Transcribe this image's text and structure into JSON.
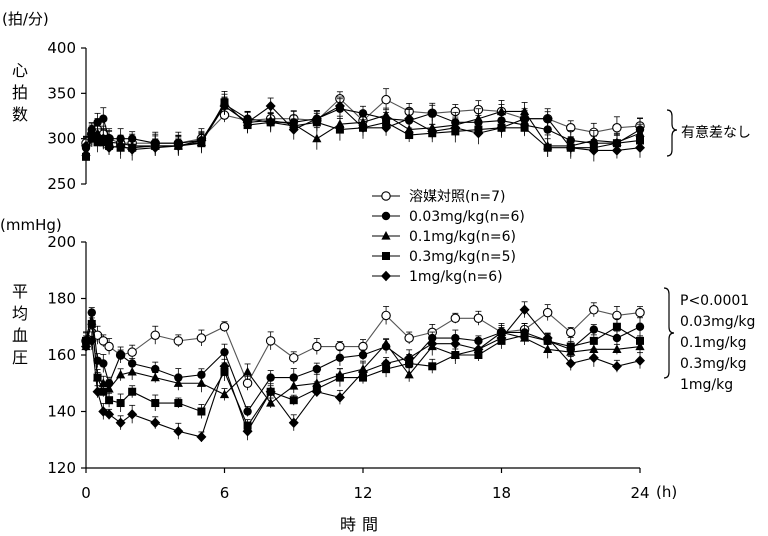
{
  "chart_data": [
    {
      "type": "line",
      "ylabel_unit": "(拍/分)",
      "ylabel": "心拍数",
      "ylim": [
        250,
        400
      ],
      "yticks": [
        250,
        300,
        350,
        400
      ],
      "xlim": [
        0,
        24
      ],
      "x": [
        0,
        0.25,
        0.5,
        0.75,
        1,
        1.5,
        2,
        3,
        4,
        5,
        6,
        7,
        8,
        9,
        10,
        11,
        12,
        13,
        14,
        15,
        16,
        17,
        18,
        19,
        20,
        21,
        22,
        23,
        24
      ],
      "annotation": "有意差なし",
      "series": [
        {
          "name": "溶媒対照(n=7)",
          "marker": "circle-open",
          "values": [
            295,
            305,
            310,
            305,
            300,
            295,
            295,
            295,
            295,
            300,
            326,
            320,
            322,
            322,
            320,
            344,
            320,
            343,
            330,
            328,
            330,
            332,
            330,
            322,
            322,
            312,
            307,
            312,
            314
          ]
        },
        {
          "name": "0.03mg/kg(n=6)",
          "marker": "circle-filled",
          "values": [
            290,
            310,
            318,
            322,
            300,
            300,
            300,
            295,
            295,
            298,
            338,
            322,
            318,
            318,
            322,
            333,
            328,
            322,
            320,
            328,
            318,
            318,
            320,
            315,
            310,
            298,
            295,
            295,
            310
          ]
        },
        {
          "name": "0.1mg/kg(n=6)",
          "marker": "triangle-filled",
          "values": [
            285,
            302,
            306,
            300,
            296,
            295,
            292,
            292,
            292,
            296,
            336,
            318,
            320,
            316,
            300,
            316,
            318,
            326,
            310,
            312,
            315,
            322,
            330,
            330,
            292,
            292,
            298,
            296,
            306
          ]
        },
        {
          "name": "0.3mg/kg(n=5)",
          "marker": "square-filled",
          "values": [
            280,
            300,
            296,
            296,
            292,
            290,
            290,
            292,
            292,
            295,
            340,
            315,
            318,
            314,
            318,
            310,
            312,
            318,
            304,
            306,
            308,
            310,
            312,
            312,
            290,
            290,
            290,
            295,
            298
          ]
        },
        {
          "name": "1mg/kg(n=6)",
          "marker": "diamond-filled",
          "values": [
            292,
            305,
            302,
            300,
            290,
            292,
            288,
            290,
            292,
            298,
            336,
            318,
            336,
            310,
            322,
            336,
            312,
            312,
            322,
            308,
            312,
            306,
            312,
            322,
            322,
            290,
            287,
            287,
            290
          ]
        }
      ]
    },
    {
      "type": "line",
      "ylabel_unit": "(mmHg)",
      "ylabel": "平均血圧",
      "xlabel": "時間",
      "x_unit": "(h)",
      "ylim": [
        120,
        200
      ],
      "yticks": [
        120,
        140,
        160,
        180,
        200
      ],
      "xlim": [
        0,
        24
      ],
      "xticks": [
        0,
        6,
        12,
        18,
        24
      ],
      "x": [
        0,
        0.25,
        0.5,
        0.75,
        1,
        1.5,
        2,
        3,
        4,
        5,
        6,
        7,
        8,
        9,
        10,
        11,
        12,
        13,
        14,
        15,
        16,
        17,
        18,
        19,
        20,
        21,
        22,
        23,
        24
      ],
      "annotation": [
        "P<0.0001",
        "0.03mg/kg",
        "0.1mg/kg",
        "0.3mg/kg",
        "1mg/kg"
      ],
      "series": [
        {
          "name": "溶媒対照(n=7)",
          "marker": "circle-open",
          "values": [
            165,
            168,
            167,
            165,
            163,
            160,
            161,
            167,
            165,
            166,
            170,
            150,
            165,
            159,
            163,
            163,
            163,
            174,
            166,
            168,
            173,
            173,
            168,
            169,
            175,
            168,
            176,
            174,
            175
          ]
        },
        {
          "name": "0.03mg/kg(n=6)",
          "marker": "circle-filled",
          "values": [
            165,
            175,
            158,
            157,
            150,
            160,
            157,
            155,
            152,
            153,
            161,
            140,
            152,
            152,
            155,
            159,
            160,
            163,
            157,
            166,
            166,
            165,
            168,
            168,
            165,
            162,
            169,
            166,
            170
          ]
        },
        {
          "name": "0.1mg/kg(n=6)",
          "marker": "triangle-filled",
          "values": [
            163,
            172,
            152,
            150,
            148,
            153,
            154,
            152,
            150,
            150,
            146,
            154,
            143,
            149,
            150,
            153,
            155,
            164,
            153,
            163,
            160,
            162,
            168,
            166,
            162,
            161,
            162,
            162,
            163
          ]
        },
        {
          "name": "0.3mg/kg(n=5)",
          "marker": "square-filled",
          "values": [
            165,
            171,
            152,
            147,
            144,
            143,
            147,
            143,
            143,
            140,
            154,
            135,
            147,
            144,
            148,
            152,
            152,
            155,
            157,
            156,
            160,
            160,
            165,
            167,
            165,
            163,
            165,
            170,
            165
          ]
        },
        {
          "name": "1mg/kg(n=6)",
          "marker": "diamond-filled",
          "values": [
            163,
            165,
            147,
            140,
            139,
            136,
            139,
            136,
            133,
            131,
            156,
            133,
            147,
            136,
            147,
            145,
            154,
            157,
            159,
            164,
            164,
            162,
            166,
            176,
            166,
            157,
            159,
            156,
            158
          ]
        }
      ]
    }
  ]
}
